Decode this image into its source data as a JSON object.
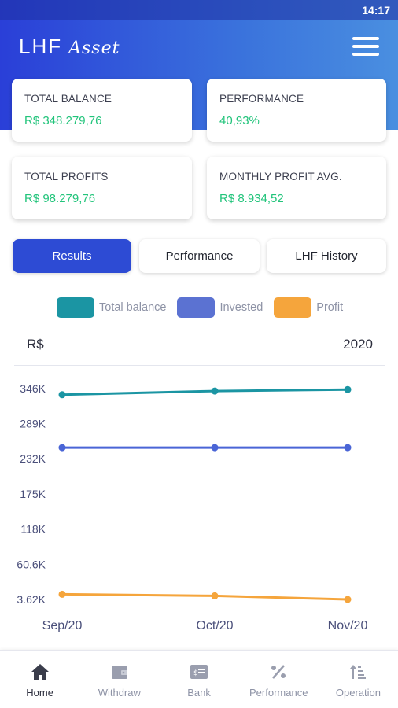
{
  "status_bar": {
    "time": "14:17"
  },
  "header": {
    "logo_main": "LHF",
    "logo_script": "Asset"
  },
  "cards": [
    {
      "label": "TOTAL BALANCE",
      "value": "R$ 348.279,76"
    },
    {
      "label": "PERFORMANCE",
      "value": "40,93%"
    },
    {
      "label": "TOTAL PROFITS",
      "value": "R$ 98.279,76"
    },
    {
      "label": "MONTHLY PROFIT AVG.",
      "value": "R$ 8.934,52"
    }
  ],
  "tabs": [
    {
      "label": "Results",
      "active": true
    },
    {
      "label": "Performance",
      "active": false
    },
    {
      "label": "LHF History",
      "active": false
    }
  ],
  "legend": [
    {
      "label": "Total balance",
      "color": "#1b95a3"
    },
    {
      "label": "Invested",
      "color": "#5b72d2"
    },
    {
      "label": "Profit",
      "color": "#f5a53c"
    }
  ],
  "chart_header": {
    "unit": "R$",
    "year": "2020"
  },
  "chart_data": {
    "type": "line",
    "categories": [
      "Sep/20",
      "Oct/20",
      "Nov/20"
    ],
    "y_ticks": [
      "346K",
      "289K",
      "232K",
      "175K",
      "118K",
      "60.6K",
      "3.62K"
    ],
    "y_tick_values": [
      346000,
      289000,
      232000,
      175000,
      118000,
      60600,
      3620
    ],
    "ylim": [
      3620,
      346000
    ],
    "series": [
      {
        "name": "Total balance",
        "color": "#1b95a3",
        "values": [
          336000,
          342000,
          344500
        ]
      },
      {
        "name": "Invested",
        "color": "#4a65d6",
        "values": [
          250000,
          250000,
          250000
        ]
      },
      {
        "name": "Profit",
        "color": "#f5a53c",
        "values": [
          12000,
          9500,
          3620
        ]
      }
    ]
  },
  "bottom_nav": [
    {
      "label": "Home",
      "icon": "home-icon",
      "active": true
    },
    {
      "label": "Withdraw",
      "icon": "wallet-icon",
      "active": false
    },
    {
      "label": "Bank",
      "icon": "bank-card-icon",
      "active": false
    },
    {
      "label": "Performance",
      "icon": "percent-icon",
      "active": false
    },
    {
      "label": "Operation",
      "icon": "sort-icon",
      "active": false
    }
  ]
}
